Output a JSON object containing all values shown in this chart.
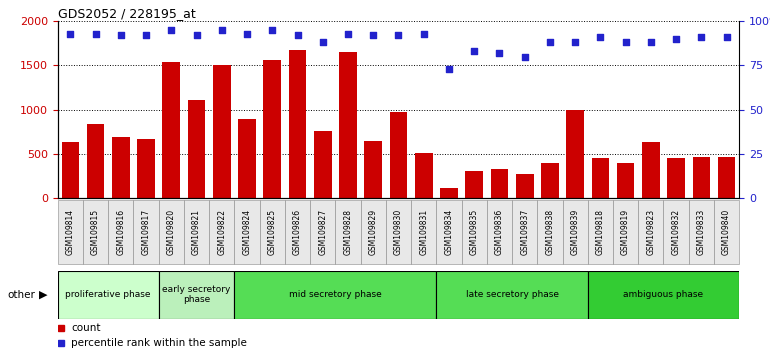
{
  "title": "GDS2052 / 228195_at",
  "samples": [
    "GSM109814",
    "GSM109815",
    "GSM109816",
    "GSM109817",
    "GSM109820",
    "GSM109821",
    "GSM109822",
    "GSM109824",
    "GSM109825",
    "GSM109826",
    "GSM109827",
    "GSM109828",
    "GSM109829",
    "GSM109830",
    "GSM109831",
    "GSM109834",
    "GSM109835",
    "GSM109836",
    "GSM109837",
    "GSM109838",
    "GSM109839",
    "GSM109818",
    "GSM109819",
    "GSM109823",
    "GSM109832",
    "GSM109833",
    "GSM109840"
  ],
  "counts": [
    630,
    840,
    690,
    670,
    1540,
    1110,
    1500,
    890,
    1560,
    1670,
    760,
    1650,
    650,
    970,
    510,
    120,
    310,
    330,
    270,
    400,
    1000,
    460,
    400,
    640,
    460,
    470,
    470
  ],
  "percentile": [
    93,
    93,
    92,
    92,
    95,
    92,
    95,
    93,
    95,
    92,
    88,
    93,
    92,
    92,
    93,
    73,
    83,
    82,
    80,
    88,
    88,
    91,
    88,
    88,
    90,
    91,
    91
  ],
  "bar_color": "#cc0000",
  "dot_color": "#2222cc",
  "ylim_left": [
    0,
    2000
  ],
  "ylim_right": [
    0,
    100
  ],
  "yticks_left": [
    0,
    500,
    1000,
    1500,
    2000
  ],
  "yticks_right": [
    0,
    25,
    50,
    75,
    100
  ],
  "ytick_right_labels": [
    "0",
    "25",
    "50",
    "75",
    "100%"
  ],
  "phases": [
    {
      "label": "proliferative phase",
      "start": 0,
      "end": 4,
      "color": "#ccffcc"
    },
    {
      "label": "early secretory\nphase",
      "start": 4,
      "end": 7,
      "color": "#bbf0bb"
    },
    {
      "label": "mid secretory phase",
      "start": 7,
      "end": 15,
      "color": "#66dd66"
    },
    {
      "label": "late secretory phase",
      "start": 15,
      "end": 21,
      "color": "#66dd66"
    },
    {
      "label": "ambiguous phase",
      "start": 21,
      "end": 27,
      "color": "#33cc33"
    }
  ],
  "legend_count_label": "count",
  "legend_pct_label": "percentile rank within the sample",
  "other_label": "other",
  "bg_color": "#e8e8e8"
}
